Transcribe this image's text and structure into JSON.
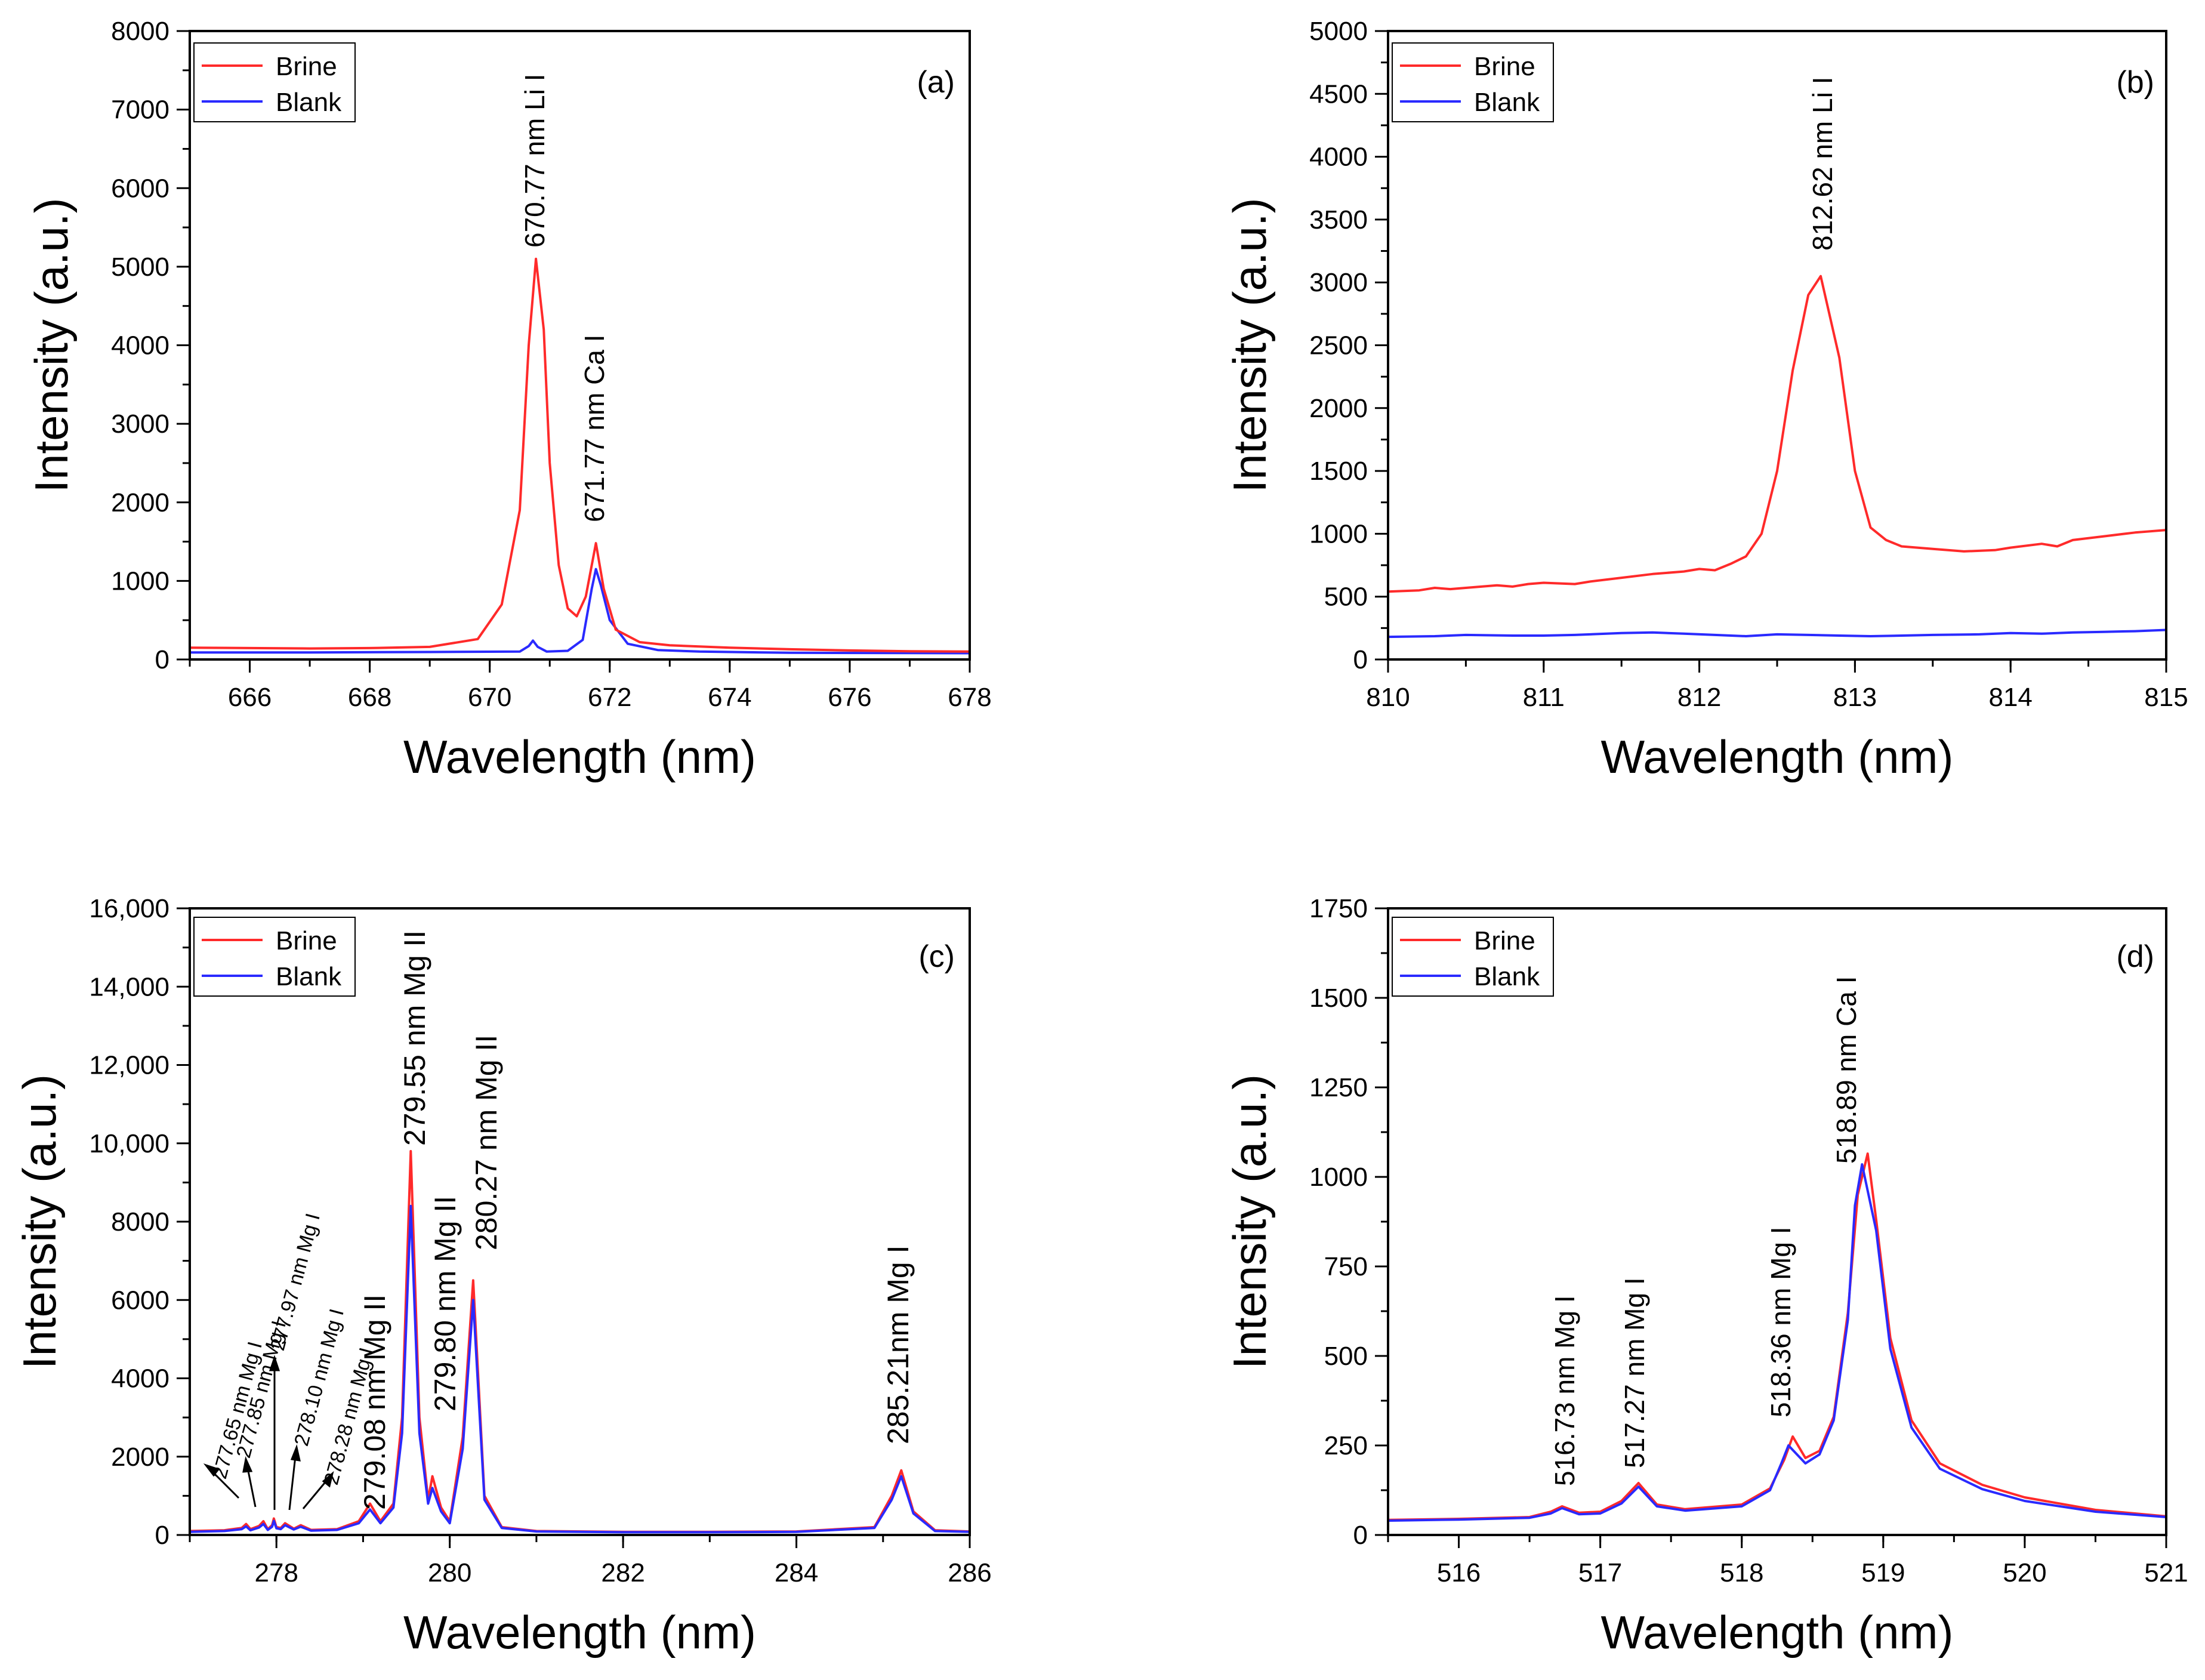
{
  "chart_data": [
    {
      "id": "a",
      "type": "line",
      "panel_label": "(a)",
      "xlabel": "Wavelength (nm)",
      "ylabel": "Intensity (a.u.)",
      "xlim": [
        665,
        678
      ],
      "ylim": [
        0,
        8000
      ],
      "xticks": [
        666,
        668,
        670,
        672,
        674,
        676,
        678
      ],
      "yticks": [
        0,
        1000,
        2000,
        3000,
        4000,
        5000,
        6000,
        7000,
        8000
      ],
      "ytick_labels": [
        "0",
        "1000",
        "2000",
        "3000",
        "4000",
        "5000",
        "6000",
        "7000",
        "8000"
      ],
      "legend": {
        "position": "top-left",
        "entries": [
          "Brine",
          "Blank"
        ]
      },
      "series": [
        {
          "name": "Brine",
          "color": "#ff2a2a",
          "x": [
            665,
            666,
            667,
            668,
            669,
            669.8,
            670.2,
            670.5,
            670.65,
            670.77,
            670.9,
            671.0,
            671.15,
            671.3,
            671.45,
            671.6,
            671.77,
            671.9,
            672.1,
            672.5,
            673,
            674,
            675,
            676,
            677,
            678
          ],
          "y": [
            150,
            145,
            140,
            145,
            160,
            260,
            700,
            1900,
            4000,
            5100,
            4200,
            2500,
            1200,
            650,
            550,
            800,
            1480,
            900,
            380,
            220,
            180,
            150,
            130,
            115,
            105,
            100
          ]
        },
        {
          "name": "Blank",
          "color": "#2a2aff",
          "x": [
            665,
            667,
            669,
            670.5,
            670.65,
            670.72,
            670.8,
            670.95,
            671.3,
            671.55,
            671.7,
            671.77,
            671.85,
            672.0,
            672.3,
            672.8,
            673.5,
            675,
            678
          ],
          "y": [
            90,
            90,
            95,
            100,
            170,
            240,
            160,
            100,
            110,
            250,
            900,
            1150,
            950,
            500,
            200,
            120,
            100,
            85,
            80
          ]
        }
      ],
      "annotations": [
        {
          "text": "670.77 nm Li I",
          "x": 670.77,
          "y": 5300
        },
        {
          "text": "671.77 nm Ca I",
          "x": 671.77,
          "y": 1700
        }
      ]
    },
    {
      "id": "b",
      "type": "line",
      "panel_label": "(b)",
      "xlabel": "Wavelength (nm)",
      "ylabel": "Intensity (a.u.)",
      "xlim": [
        810,
        815
      ],
      "ylim": [
        0,
        5000
      ],
      "xticks": [
        810,
        811,
        812,
        813,
        814,
        815
      ],
      "yticks": [
        0,
        500,
        1000,
        1500,
        2000,
        2500,
        3000,
        3500,
        4000,
        4500,
        5000
      ],
      "ytick_labels": [
        "0",
        "500",
        "1000",
        "1500",
        "2000",
        "2500",
        "3000",
        "3500",
        "4000",
        "4500",
        "5000"
      ],
      "legend": {
        "position": "top-left",
        "entries": [
          "Brine",
          "Blank"
        ]
      },
      "series": [
        {
          "name": "Brine",
          "color": "#ff2a2a",
          "x": [
            810,
            810.2,
            810.3,
            810.4,
            810.5,
            810.7,
            810.8,
            810.9,
            811,
            811.2,
            811.3,
            811.5,
            811.7,
            811.9,
            812,
            812.1,
            812.2,
            812.3,
            812.4,
            812.5,
            812.6,
            812.7,
            812.78,
            812.9,
            813.0,
            813.1,
            813.2,
            813.3,
            813.5,
            813.7,
            813.9,
            814.0,
            814.2,
            814.3,
            814.4,
            814.6,
            814.8,
            815
          ],
          "y": [
            540,
            550,
            570,
            560,
            570,
            590,
            580,
            600,
            610,
            600,
            620,
            650,
            680,
            700,
            720,
            710,
            760,
            820,
            1000,
            1500,
            2300,
            2900,
            3050,
            2400,
            1500,
            1050,
            950,
            900,
            880,
            860,
            870,
            890,
            920,
            900,
            950,
            980,
            1010,
            1030
          ]
        },
        {
          "name": "Blank",
          "color": "#2a2aff",
          "x": [
            810,
            810.3,
            810.5,
            810.8,
            811,
            811.2,
            811.5,
            811.7,
            811.9,
            812.1,
            812.3,
            812.5,
            812.7,
            812.9,
            813.1,
            813.3,
            813.5,
            813.8,
            814,
            814.2,
            814.4,
            814.6,
            814.8,
            815
          ],
          "y": [
            180,
            185,
            195,
            190,
            190,
            195,
            210,
            215,
            205,
            195,
            185,
            200,
            195,
            190,
            185,
            190,
            195,
            200,
            210,
            205,
            215,
            220,
            225,
            235
          ]
        }
      ],
      "annotations": [
        {
          "text": "812.62 nm Li I",
          "x": 812.78,
          "y": 3250
        }
      ]
    },
    {
      "id": "c",
      "type": "line",
      "panel_label": "(c)",
      "xlabel": "Wavelength (nm)",
      "ylabel": "Intensity (a.u.)",
      "xlim": [
        277,
        286
      ],
      "ylim": [
        0,
        16000
      ],
      "xticks": [
        278,
        280,
        282,
        284,
        286
      ],
      "yticks": [
        0,
        2000,
        4000,
        6000,
        8000,
        10000,
        12000,
        14000,
        16000
      ],
      "ytick_labels": [
        "0",
        "2000",
        "4000",
        "6000",
        "8000",
        "10,000",
        "12,000",
        "14,000",
        "16,000"
      ],
      "legend": {
        "position": "top-left",
        "entries": [
          "Brine",
          "Blank"
        ]
      },
      "series": [
        {
          "name": "Brine",
          "color": "#ff2a2a",
          "x": [
            277,
            277.4,
            277.6,
            277.65,
            277.7,
            277.8,
            277.85,
            277.9,
            277.95,
            277.97,
            278.0,
            278.05,
            278.1,
            278.2,
            278.28,
            278.4,
            278.7,
            278.95,
            279.08,
            279.2,
            279.35,
            279.45,
            279.55,
            279.65,
            279.75,
            279.8,
            279.9,
            280.0,
            280.15,
            280.27,
            280.4,
            280.6,
            281,
            282,
            283,
            284,
            284.9,
            285.1,
            285.21,
            285.35,
            285.6,
            286
          ],
          "y": [
            100,
            120,
            180,
            280,
            150,
            230,
            350,
            150,
            250,
            420,
            200,
            180,
            300,
            160,
            250,
            130,
            150,
            350,
            800,
            350,
            800,
            3000,
            9800,
            3000,
            900,
            1500,
            700,
            350,
            2500,
            6500,
            1000,
            200,
            100,
            80,
            80,
            90,
            200,
            1000,
            1650,
            600,
            120,
            90
          ]
        },
        {
          "name": "Blank",
          "color": "#2a2aff",
          "x": [
            277,
            277.4,
            277.6,
            277.65,
            277.7,
            277.8,
            277.85,
            277.9,
            277.95,
            277.97,
            278.0,
            278.05,
            278.1,
            278.2,
            278.28,
            278.4,
            278.7,
            278.95,
            279.08,
            279.2,
            279.35,
            279.45,
            279.55,
            279.65,
            279.75,
            279.8,
            279.9,
            280.0,
            280.15,
            280.27,
            280.4,
            280.6,
            281,
            282,
            283,
            284,
            284.9,
            285.1,
            285.21,
            285.35,
            285.6,
            286
          ],
          "y": [
            80,
            100,
            150,
            220,
            120,
            190,
            280,
            130,
            210,
            360,
            170,
            150,
            250,
            140,
            210,
            110,
            130,
            300,
            650,
            300,
            700,
            2600,
            8400,
            2600,
            800,
            1200,
            600,
            300,
            2200,
            6000,
            900,
            180,
            90,
            70,
            70,
            80,
            180,
            900,
            1500,
            550,
            100,
            80
          ]
        }
      ],
      "annotations": [
        {
          "text": "277.65 nm Mg I",
          "size": "small"
        },
        {
          "text": "277.85 nm Mg I",
          "size": "small"
        },
        {
          "text": "277.97 nm Mg I",
          "size": "small"
        },
        {
          "text": "278.10 nm Mg I",
          "size": "small"
        },
        {
          "text": "278.28 nm Mg I",
          "size": "small"
        },
        {
          "text": "279.08 nm Mg II",
          "size": "large"
        },
        {
          "text": "279.55 nm Mg II",
          "size": "large"
        },
        {
          "text": "279.80 nm Mg II",
          "size": "large"
        },
        {
          "text": "280.27 nm Mg II",
          "size": "large"
        },
        {
          "text": "285.21nm Mg I",
          "size": "large"
        }
      ]
    },
    {
      "id": "d",
      "type": "line",
      "panel_label": "(d)",
      "xlabel": "Wavelength (nm)",
      "ylabel": "Intensity (a.u.)",
      "xlim": [
        515.5,
        521
      ],
      "ylim": [
        0,
        1750
      ],
      "xticks": [
        516,
        517,
        518,
        519,
        520,
        521
      ],
      "yticks": [
        0,
        250,
        500,
        750,
        1000,
        1250,
        1500,
        1750
      ],
      "ytick_labels": [
        "0",
        "250",
        "500",
        "750",
        "1000",
        "1250",
        "1500",
        "1750"
      ],
      "legend": {
        "position": "top-left",
        "entries": [
          "Brine",
          "Blank"
        ]
      },
      "series": [
        {
          "name": "Brine",
          "color": "#ff2a2a",
          "x": [
            515.5,
            516,
            516.5,
            516.65,
            516.73,
            516.85,
            517.0,
            517.15,
            517.27,
            517.4,
            517.6,
            518.0,
            518.2,
            518.3,
            518.36,
            518.45,
            518.55,
            518.65,
            518.75,
            518.82,
            518.89,
            518.95,
            519.05,
            519.2,
            519.4,
            519.7,
            520,
            520.5,
            521
          ],
          "y": [
            42,
            45,
            50,
            65,
            80,
            62,
            65,
            95,
            145,
            85,
            72,
            85,
            130,
            210,
            275,
            215,
            235,
            330,
            620,
            950,
            1065,
            880,
            550,
            320,
            200,
            140,
            105,
            70,
            52
          ]
        },
        {
          "name": "Blank",
          "color": "#2a2aff",
          "x": [
            515.5,
            516,
            516.5,
            516.65,
            516.73,
            516.85,
            517.0,
            517.15,
            517.27,
            517.4,
            517.6,
            518.0,
            518.2,
            518.28,
            518.33,
            518.45,
            518.55,
            518.65,
            518.75,
            518.8,
            518.85,
            518.95,
            519.05,
            519.2,
            519.4,
            519.7,
            520,
            520.5,
            521
          ],
          "y": [
            40,
            43,
            48,
            60,
            75,
            58,
            60,
            88,
            135,
            80,
            68,
            80,
            125,
            200,
            250,
            200,
            225,
            320,
            600,
            920,
            1035,
            850,
            520,
            300,
            185,
            128,
            95,
            65,
            50
          ]
        }
      ],
      "annotations": [
        {
          "text": "516.73 nm Mg I"
        },
        {
          "text": "517.27 nm Mg I"
        },
        {
          "text": "518.36 nm Mg I"
        },
        {
          "text": "518.89 nm Ca I"
        }
      ]
    }
  ]
}
